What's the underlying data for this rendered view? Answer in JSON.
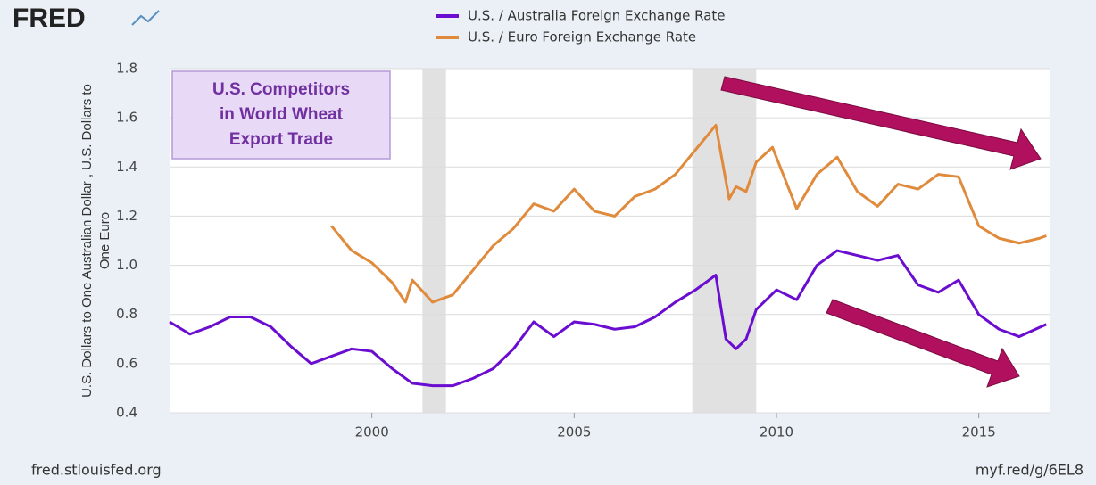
{
  "logo": "FRED",
  "footer_left": "fred.stlouisfed.org",
  "footer_right": "myf.red/g/6EL8",
  "chart_data": {
    "type": "line",
    "ylabel": "U.S. Dollars to One Australian Dollar , U.S. Dollars to One Euro",
    "annotation": [
      "U.S. Competitors",
      "in World Wheat",
      "Export Trade"
    ],
    "xlim": [
      1995,
      2016.75
    ],
    "xticks": [
      2000,
      2005,
      2010,
      2015
    ],
    "ylim": [
      0.4,
      1.8
    ],
    "yticks": [
      {
        "value": 0.4,
        "label": "0.4"
      },
      {
        "value": 0.6,
        "label": "0.6"
      },
      {
        "value": 0.8,
        "label": "0.8"
      },
      {
        "value": 1.0,
        "label": "1.0"
      },
      {
        "value": 1.2,
        "label": "1.2"
      },
      {
        "value": 1.4,
        "label": "1.4"
      },
      {
        "value": 1.6,
        "label": "1.6"
      },
      {
        "value": 1.8,
        "label": "1.8"
      }
    ],
    "grid": true,
    "recessions": [
      [
        2001.25,
        2001.83
      ],
      [
        2007.92,
        2009.5
      ]
    ],
    "series": [
      {
        "name": "U.S. / Australia Foreign Exchange Rate",
        "color": "#6a0dd0",
        "x": [
          1995.0,
          1995.5,
          1996.0,
          1996.5,
          1997.0,
          1997.5,
          1998.0,
          1998.5,
          1999.0,
          1999.5,
          2000.0,
          2000.5,
          2001.0,
          2001.5,
          2002.0,
          2002.5,
          2003.0,
          2003.5,
          2004.0,
          2004.5,
          2005.0,
          2005.5,
          2006.0,
          2006.5,
          2007.0,
          2007.5,
          2008.0,
          2008.5,
          2008.75,
          2009.0,
          2009.25,
          2009.5,
          2010.0,
          2010.5,
          2011.0,
          2011.5,
          2012.0,
          2012.5,
          2013.0,
          2013.5,
          2014.0,
          2014.5,
          2015.0,
          2015.5,
          2016.0,
          2016.67
        ],
        "values": [
          0.77,
          0.72,
          0.75,
          0.79,
          0.79,
          0.75,
          0.67,
          0.6,
          0.63,
          0.66,
          0.65,
          0.58,
          0.52,
          0.51,
          0.51,
          0.54,
          0.58,
          0.66,
          0.77,
          0.71,
          0.77,
          0.76,
          0.74,
          0.75,
          0.79,
          0.85,
          0.9,
          0.96,
          0.7,
          0.66,
          0.7,
          0.82,
          0.9,
          0.86,
          1.0,
          1.06,
          1.04,
          1.02,
          1.04,
          0.92,
          0.89,
          0.94,
          0.8,
          0.74,
          0.71,
          0.76
        ]
      },
      {
        "name": "U.S. / Euro Foreign Exchange Rate",
        "color": "#e08a3c",
        "x": [
          1999.0,
          1999.5,
          2000.0,
          2000.5,
          2000.83,
          2001.0,
          2001.5,
          2002.0,
          2002.5,
          2003.0,
          2003.5,
          2004.0,
          2004.5,
          2005.0,
          2005.5,
          2006.0,
          2006.5,
          2007.0,
          2007.5,
          2008.0,
          2008.5,
          2008.83,
          2009.0,
          2009.25,
          2009.5,
          2009.9,
          2010.5,
          2011.0,
          2011.5,
          2012.0,
          2012.5,
          2013.0,
          2013.5,
          2014.0,
          2014.5,
          2015.0,
          2015.5,
          2016.0,
          2016.5,
          2016.67
        ],
        "values": [
          1.16,
          1.06,
          1.01,
          0.93,
          0.85,
          0.94,
          0.85,
          0.88,
          0.98,
          1.08,
          1.15,
          1.25,
          1.22,
          1.31,
          1.22,
          1.2,
          1.28,
          1.31,
          1.37,
          1.47,
          1.57,
          1.27,
          1.32,
          1.3,
          1.42,
          1.48,
          1.23,
          1.37,
          1.44,
          1.3,
          1.24,
          1.33,
          1.31,
          1.37,
          1.36,
          1.16,
          1.11,
          1.09,
          1.11,
          1.12
        ]
      }
    ]
  }
}
